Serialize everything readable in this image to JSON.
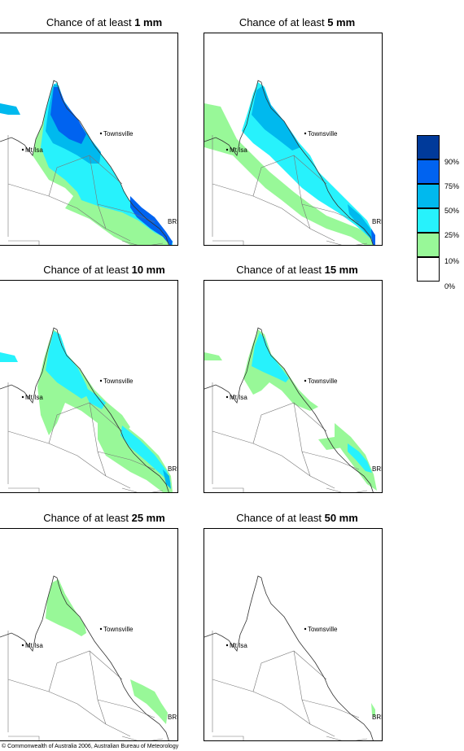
{
  "panels": [
    {
      "prefix": "Chance of at least ",
      "amount": "1 mm"
    },
    {
      "prefix": "Chance of at least ",
      "amount": "5 mm"
    },
    {
      "prefix": "Chance of at least ",
      "amount": "10 mm"
    },
    {
      "prefix": "Chance of at least ",
      "amount": "15 mm"
    },
    {
      "prefix": "Chance of at least ",
      "amount": "25 mm"
    },
    {
      "prefix": "Chance of at least ",
      "amount": "50 mm"
    }
  ],
  "places": {
    "townsville": "Townsville",
    "mt_isa": "Mt Isa",
    "bris": "BRIS"
  },
  "legend": {
    "labels": [
      "90%",
      "75%",
      "50%",
      "25%",
      "10%",
      "0%"
    ],
    "colors": [
      "#003a9a",
      "#0063f0",
      "#00b9ee",
      "#27f2fc",
      "#98f898",
      "#ffffff"
    ]
  },
  "footer": "© Commonwealth of Australia 2006, Australian Bureau of Meteorology"
}
